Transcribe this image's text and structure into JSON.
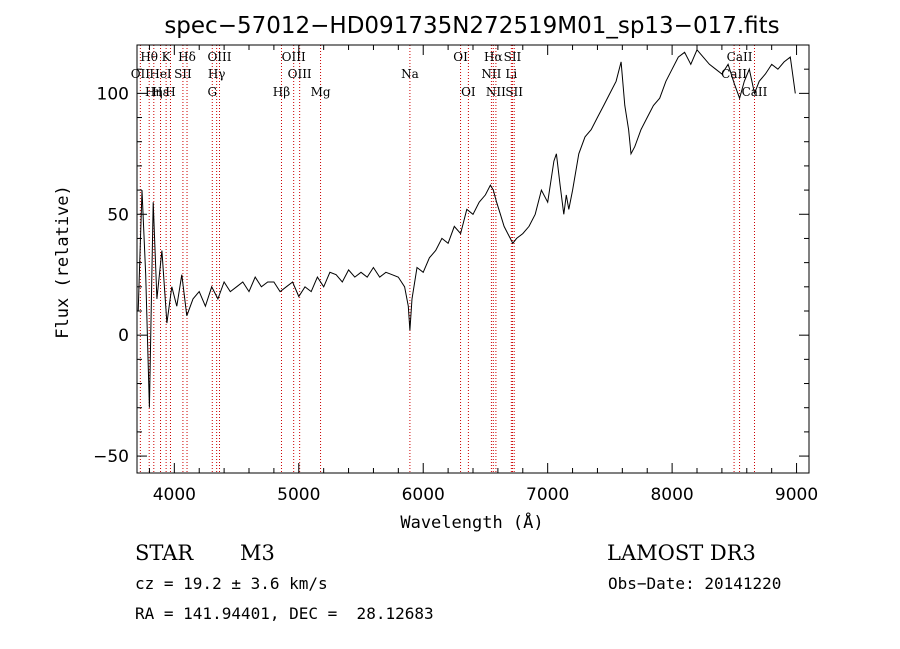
{
  "chart_data": {
    "type": "line",
    "title": "spec−57012−HD091735N272519M01_sp13−017.fits",
    "xlabel": "Wavelength (Å)",
    "ylabel": "Flux (relative)",
    "xlim": [
      3700,
      9100
    ],
    "ylim": [
      -57,
      120
    ],
    "x_ticks": [
      4000,
      5000,
      6000,
      7000,
      8000,
      9000
    ],
    "x_tick_labels": [
      "4000",
      "5000",
      "6000",
      "7000",
      "8000",
      "9000"
    ],
    "y_ticks": [
      -50,
      0,
      50,
      100
    ],
    "y_tick_labels": [
      "−50",
      "0",
      "50",
      "100"
    ],
    "grid": false,
    "series": [
      {
        "name": "flux",
        "x": [
          3710,
          3740,
          3770,
          3800,
          3830,
          3860,
          3900,
          3940,
          3980,
          4020,
          4060,
          4100,
          4150,
          4200,
          4250,
          4300,
          4350,
          4400,
          4450,
          4500,
          4550,
          4600,
          4650,
          4700,
          4750,
          4800,
          4850,
          4900,
          4950,
          5000,
          5050,
          5100,
          5150,
          5200,
          5250,
          5300,
          5350,
          5400,
          5450,
          5500,
          5550,
          5600,
          5650,
          5700,
          5750,
          5800,
          5850,
          5880,
          5893,
          5910,
          5950,
          6000,
          6050,
          6100,
          6150,
          6200,
          6250,
          6300,
          6350,
          6400,
          6450,
          6500,
          6540,
          6563,
          6590,
          6620,
          6650,
          6680,
          6700,
          6720,
          6750,
          6800,
          6850,
          6900,
          6950,
          7000,
          7050,
          7070,
          7100,
          7130,
          7150,
          7170,
          7200,
          7250,
          7300,
          7350,
          7400,
          7450,
          7500,
          7550,
          7590,
          7620,
          7650,
          7670,
          7700,
          7750,
          7800,
          7850,
          7900,
          7950,
          8000,
          8050,
          8100,
          8150,
          8200,
          8250,
          8300,
          8350,
          8400,
          8450,
          8500,
          8542,
          8580,
          8620,
          8662,
          8700,
          8750,
          8800,
          8850,
          8900,
          8950,
          8990
        ],
        "y": [
          10,
          60,
          25,
          -30,
          55,
          15,
          35,
          5,
          20,
          12,
          25,
          8,
          15,
          18,
          12,
          20,
          15,
          22,
          18,
          20,
          22,
          18,
          24,
          20,
          22,
          22,
          18,
          20,
          22,
          16,
          20,
          18,
          24,
          20,
          26,
          25,
          22,
          27,
          24,
          26,
          24,
          28,
          24,
          26,
          25,
          24,
          20,
          12,
          2,
          15,
          28,
          26,
          32,
          35,
          40,
          38,
          45,
          42,
          52,
          50,
          55,
          58,
          62,
          60,
          55,
          50,
          45,
          42,
          40,
          38,
          40,
          42,
          45,
          50,
          60,
          55,
          72,
          75,
          62,
          50,
          58,
          52,
          60,
          75,
          82,
          85,
          90,
          95,
          100,
          105,
          113,
          95,
          85,
          75,
          78,
          85,
          90,
          95,
          98,
          105,
          110,
          115,
          117,
          112,
          118,
          115,
          112,
          110,
          108,
          112,
          104,
          98,
          105,
          110,
          100,
          105,
          108,
          112,
          110,
          113,
          115,
          100
        ]
      }
    ],
    "lines": [
      {
        "label": "Hθ",
        "wave": 3798,
        "row": 1
      },
      {
        "label": "OII",
        "wave": 3727,
        "row": 2
      },
      {
        "label": "Hη",
        "wave": 3835,
        "row": 3
      },
      {
        "label": "Hε",
        "wave": 3889,
        "row": 3
      },
      {
        "label": "K",
        "wave": 3934,
        "row": 1
      },
      {
        "label": "HeI",
        "wave": 3889,
        "row": 2
      },
      {
        "label": "H",
        "wave": 3969,
        "row": 3
      },
      {
        "label": "Hδ",
        "wave": 4102,
        "row": 1
      },
      {
        "label": "SII",
        "wave": 4069,
        "row": 2
      },
      {
        "label": "OIII",
        "wave": 4363,
        "row": 1
      },
      {
        "label": "Hγ",
        "wave": 4340,
        "row": 2
      },
      {
        "label": "G",
        "wave": 4305,
        "row": 3
      },
      {
        "label": "OIII",
        "wave": 4959,
        "row": 1
      },
      {
        "label": "OIII",
        "wave": 5007,
        "row": 2
      },
      {
        "label": "Hβ",
        "wave": 4861,
        "row": 3
      },
      {
        "label": "Mg",
        "wave": 5175,
        "row": 3
      },
      {
        "label": "Na",
        "wave": 5893,
        "row": 2
      },
      {
        "label": "OI",
        "wave": 6300,
        "row": 1
      },
      {
        "label": "OI",
        "wave": 6363,
        "row": 3
      },
      {
        "label": "Hα",
        "wave": 6563,
        "row": 1
      },
      {
        "label": "NII",
        "wave": 6548,
        "row": 2
      },
      {
        "label": "NII",
        "wave": 6584,
        "row": 3
      },
      {
        "label": "SII",
        "wave": 6717,
        "row": 1
      },
      {
        "label": "Li",
        "wave": 6708,
        "row": 2
      },
      {
        "label": "SII",
        "wave": 6731,
        "row": 3
      },
      {
        "label": "CaII",
        "wave": 8542,
        "row": 1
      },
      {
        "label": "CaII",
        "wave": 8498,
        "row": 2
      },
      {
        "label": "CaII",
        "wave": 8662,
        "row": 3
      }
    ]
  },
  "info": {
    "object_class": "STAR",
    "subclass": "M3",
    "survey": "LAMOST DR3",
    "cz": "cz = 19.2 ± 3.6 km/s",
    "obs_date": "Obs−Date: 20141220",
    "coords": "RA = 141.94401, DEC =  28.12683"
  }
}
